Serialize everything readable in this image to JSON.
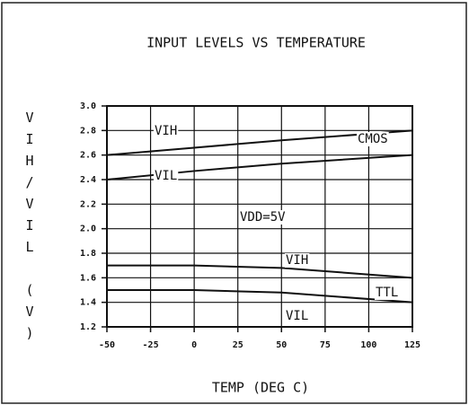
{
  "chart_data": {
    "type": "line",
    "title": "INPUT LEVELS VS TEMPERATURE",
    "x_label": "TEMP (DEG C)",
    "y_label": "VIH/VIL (V)",
    "x": [
      -50,
      0,
      50,
      125
    ],
    "series": [
      {
        "name": "CMOS VIH",
        "color": "#111111",
        "values": [
          2.6,
          2.66,
          2.72,
          2.8
        ]
      },
      {
        "name": "CMOS VIL",
        "color": "#111111",
        "values": [
          2.4,
          2.47,
          2.53,
          2.6
        ]
      },
      {
        "name": "TTL VIH",
        "color": "#111111",
        "values": [
          1.7,
          1.7,
          1.68,
          1.6
        ]
      },
      {
        "name": "TTL VIL",
        "color": "#111111",
        "values": [
          1.5,
          1.5,
          1.48,
          1.4
        ]
      }
    ],
    "annotations": [
      "VIH",
      "CMOS",
      "VIL",
      "VDD=5V",
      "VIH",
      "TTL",
      "VIL"
    ],
    "xlim": [
      -50,
      125
    ],
    "xticks": [
      -50,
      -25,
      0,
      25,
      50,
      75,
      100,
      125
    ],
    "ylim": [
      1.2,
      3
    ],
    "yticks": [
      {
        "value": 1.2,
        "label": "1.2"
      },
      1.4,
      1.6,
      1.8,
      {
        "value": 2,
        "label": "2.0"
      },
      2.2,
      2.4,
      2.6,
      2.8,
      {
        "value": 3,
        "label": "3.0"
      }
    ],
    "grid": true
  }
}
